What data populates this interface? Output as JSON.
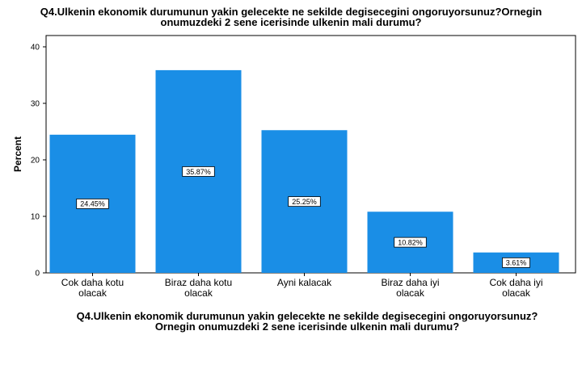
{
  "chart_data": {
    "type": "bar",
    "title_lines": [
      "Q4.Ulkenin ekonomik durumunun yakin gelecekte ne sekilde degisecegini ongoruyorsunuz?Ornegin",
      "onumuzdeki 2 sene icerisinde ulkenin mali durumu?"
    ],
    "xlabel_lines": [
      "Q4.Ulkenin ekonomik durumunun yakin gelecekte ne sekilde degisecegini ongoruyorsunuz?",
      "Ornegin onumuzdeki 2 sene icerisinde ulkenin mali durumu?"
    ],
    "ylabel": "Percent",
    "categories": [
      [
        "Cok daha kotu",
        "olacak"
      ],
      [
        "Biraz daha kotu",
        "olacak"
      ],
      [
        "Ayni kalacak"
      ],
      [
        "Biraz daha iyi",
        "olacak"
      ],
      [
        "Cok daha iyi",
        "olacak"
      ]
    ],
    "values": [
      24.45,
      35.87,
      25.25,
      10.82,
      3.61
    ],
    "data_labels": [
      "24.45%",
      "35.87%",
      "25.25%",
      "10.82%",
      "3.61%"
    ],
    "ylim": [
      0,
      40
    ],
    "yticks": [
      0,
      10,
      20,
      30,
      40
    ],
    "bar_color": "#1a8ee6",
    "grid": false,
    "legend": "none"
  }
}
